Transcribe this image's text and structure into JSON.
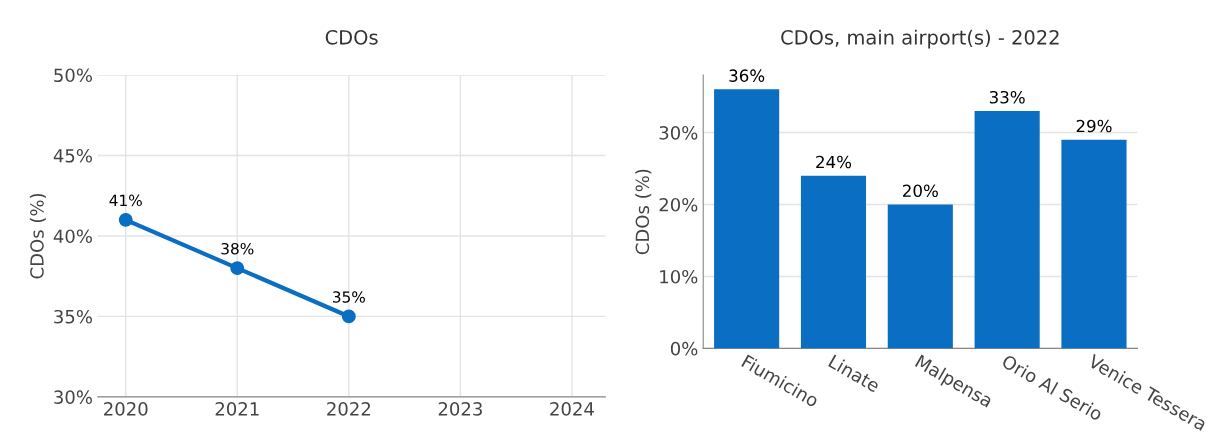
{
  "chart_data": [
    {
      "type": "line",
      "title": "CDOs",
      "ylabel": "CDOs (%)",
      "x": [
        2020,
        2021,
        2022
      ],
      "series": [
        {
          "color": "#0a6fc2",
          "values": [
            41,
            38,
            35
          ],
          "value_labels": [
            "41%",
            "38%",
            "35%"
          ]
        }
      ],
      "xlim": [
        2019.75,
        2024.3
      ],
      "xticks": [
        2020,
        2021,
        2022,
        2023,
        2024
      ],
      "ylim": [
        30,
        50
      ],
      "yticks": [
        {
          "value": 30,
          "label": "30%"
        },
        {
          "value": 35,
          "label": "35%"
        },
        {
          "value": 40,
          "label": "40%"
        },
        {
          "value": 45,
          "label": "45%"
        },
        {
          "value": 50,
          "label": "50%"
        }
      ],
      "grid": true,
      "marker": "circle",
      "line_style": "solid",
      "legend": false
    },
    {
      "type": "bar",
      "title": "CDOs, main airport(s) - 2022",
      "ylabel": "CDOs (%)",
      "categories": [
        "Fiumicino",
        "Linate",
        "Malpensa",
        "Orio Al Serio",
        "Venice Tessera"
      ],
      "values": [
        36,
        24,
        20,
        33,
        29
      ],
      "value_labels": [
        "36%",
        "24%",
        "20%",
        "33%",
        "29%"
      ],
      "color": "#0a6fc2",
      "ylim": [
        0,
        38
      ],
      "yticks": [
        {
          "value": 0,
          "label": "0%"
        },
        {
          "value": 10,
          "label": "10%"
        },
        {
          "value": 20,
          "label": "20%"
        },
        {
          "value": 30,
          "label": "30%"
        }
      ],
      "grid": "y",
      "legend": false
    }
  ]
}
